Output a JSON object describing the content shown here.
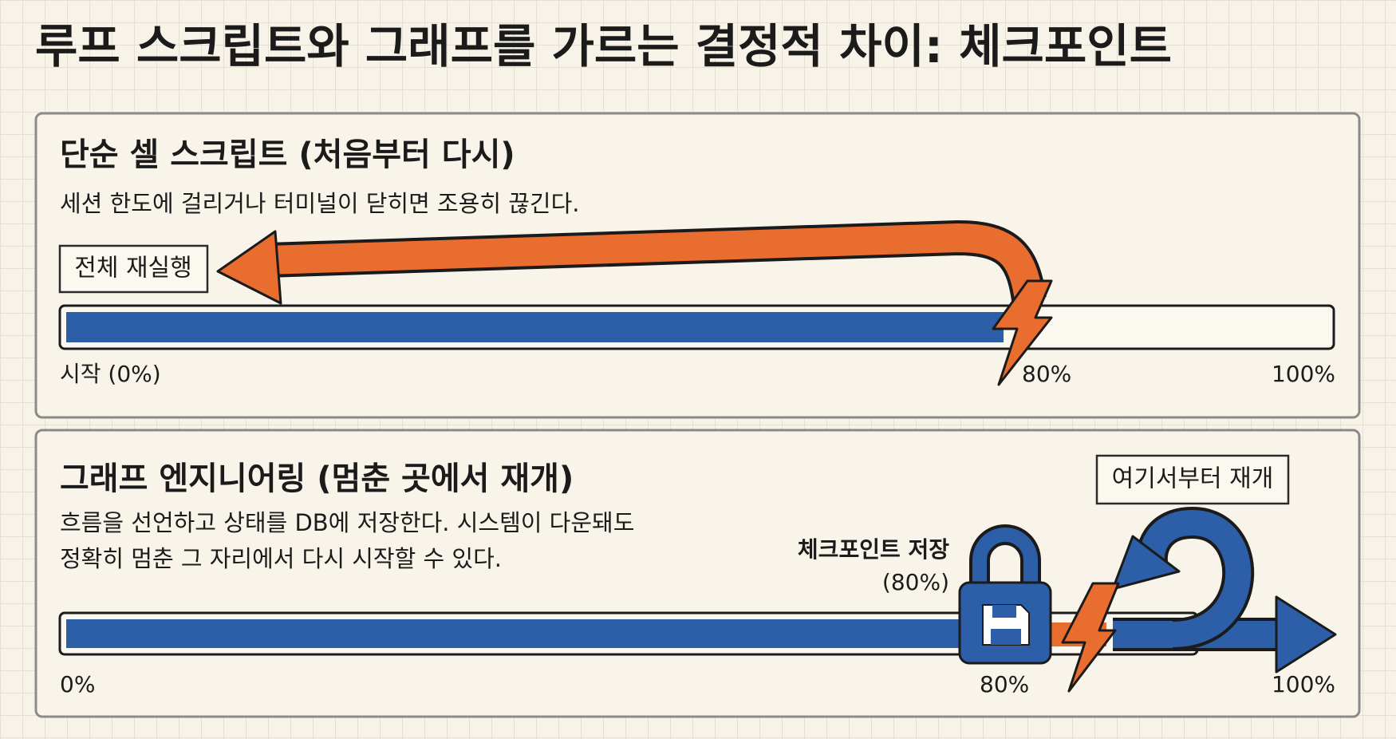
{
  "title": "루프 스크립트와 그래프를 가르는 결정적 차이: 체크포인트",
  "panels": [
    {
      "heading": "단순 셀 스크립트 (처음부터 다시)",
      "description": [
        "세션 한도에 걸리거나 터미널이 닫히면 조용히 끊긴다."
      ],
      "callout": "전체 재실행",
      "labels": [
        "시작 (0%)",
        "80%",
        "100%"
      ]
    },
    {
      "heading": "그래프 엔지니어링 (멈춘 곳에서 재개)",
      "description": [
        "흐름을 선언하고 상태를 DB에 저장한다. 시스템이 다운돼도",
        "정확히 멈춘 그 자리에서 다시 시작할 수 있다."
      ],
      "callout": "여기서부터 재개",
      "checkpoint": {
        "label": "체크포인트 저장",
        "percent": "(80%)"
      },
      "labels": [
        "0%",
        "80%",
        "100%"
      ]
    }
  ]
}
